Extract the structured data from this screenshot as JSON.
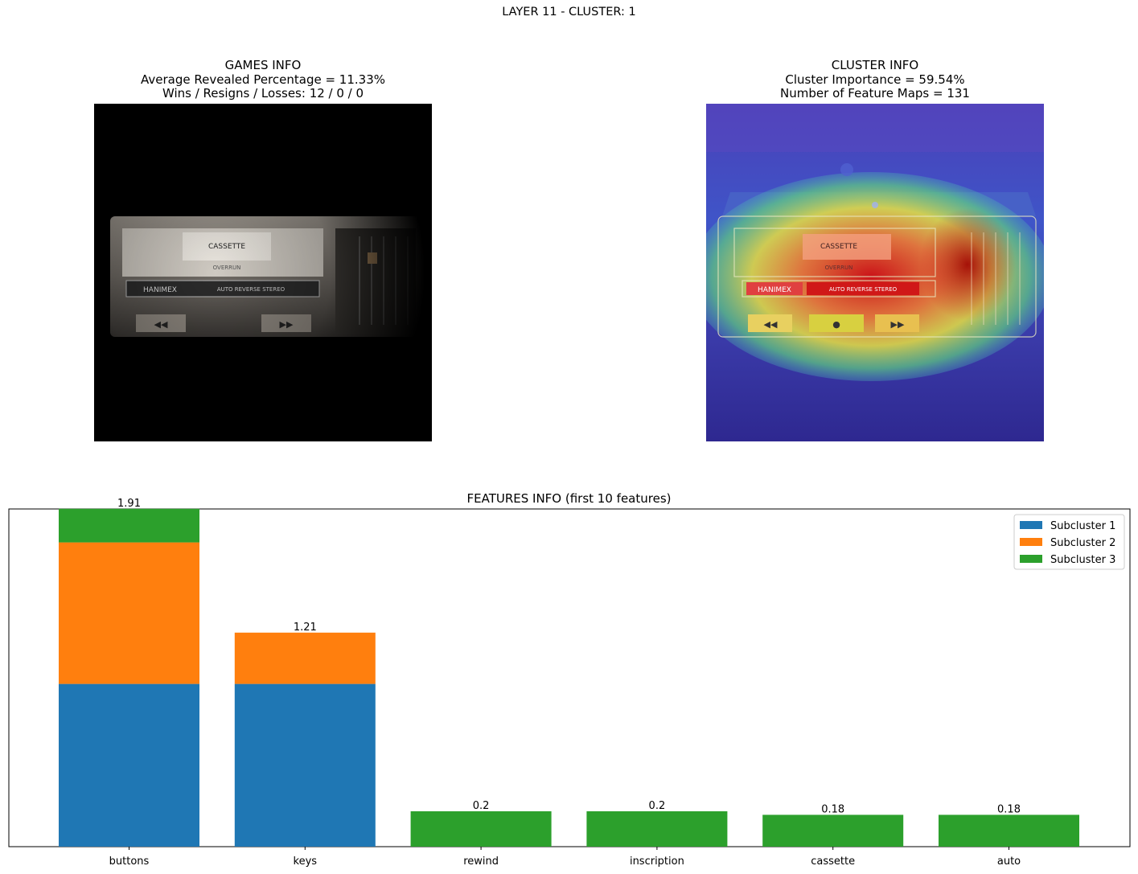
{
  "suptitle": "LAYER 11 - CLUSTER: 1",
  "games_info": {
    "title": "GAMES INFO",
    "line1": "Average Revealed Percentage = 11.33%",
    "line2": "Wins / Resigns / Losses: 12 / 0 / 0"
  },
  "cluster_info": {
    "title": "CLUSTER INFO",
    "line1": "Cluster Importance = 59.54%",
    "line2": "Number of Feature Maps = 131"
  },
  "image_text": {
    "cassette": "CASSETTE",
    "brand": "HANIMEX",
    "stereo": "AUTO REVERSE STEREO",
    "overrun": "OVERRUN"
  },
  "chart_data": {
    "type": "bar",
    "stacked": true,
    "title": "FEATURES INFO (first 10 features)",
    "categories": [
      "buttons",
      "keys",
      "rewind",
      "inscription",
      "cassette",
      "auto"
    ],
    "series": [
      {
        "name": "Subcluster 1",
        "color": "#1f77b4",
        "values": [
          0.92,
          0.92,
          0,
          0,
          0,
          0
        ]
      },
      {
        "name": "Subcluster 2",
        "color": "#ff7f0e",
        "values": [
          0.8,
          0.29,
          0,
          0,
          0,
          0
        ]
      },
      {
        "name": "Subcluster 3",
        "color": "#2ca02c",
        "values": [
          0.19,
          0,
          0.2,
          0.2,
          0.18,
          0.18
        ]
      }
    ],
    "totals": [
      1.91,
      1.21,
      0.2,
      0.2,
      0.18,
      0.18
    ],
    "total_labels": [
      "1.91",
      "1.21",
      "0.2",
      "0.2",
      "0.18",
      "0.18"
    ],
    "ylim": [
      0,
      2.0
    ],
    "yticks_visible": false,
    "legend_position": "upper right",
    "grid": false
  }
}
